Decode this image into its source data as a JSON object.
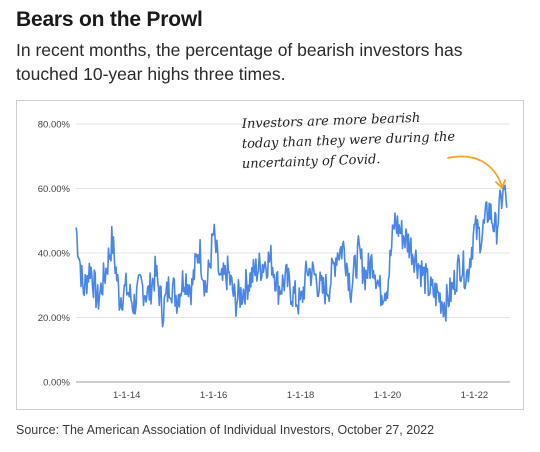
{
  "header": {
    "title": "Bears on the Prowl",
    "subtitle": "In recent months, the percentage of bearish investors has touched 10-year highs three times."
  },
  "source": "Source: The American Association of Individual Investors, October 27, 2022",
  "colors": {
    "line": "#4a86e8",
    "arrow": "#f4a62a",
    "grid": "#e3e3e3",
    "frame": "#cfcfcf"
  },
  "chart_data": {
    "type": "line",
    "title": "",
    "xlabel": "",
    "ylabel": "",
    "ylim": [
      0,
      80
    ],
    "yticks": [
      "0.00%",
      "20.00%",
      "40.00%",
      "60.00%",
      "80.00%"
    ],
    "xticks": [
      "1-1-14",
      "1-1-16",
      "1-1-18",
      "1-1-20",
      "1-1-22"
    ],
    "xlim": [
      "2012-11-01",
      "2022-10-27"
    ],
    "grid": true,
    "legend": "none",
    "annotation": "Investors are more bearish today than they were during the uncertainty of Covid.",
    "series": [
      {
        "points": [
          [
            "2012-11",
            48
          ],
          [
            "2013-01",
            28
          ],
          [
            "2013-03",
            36
          ],
          [
            "2013-05",
            25
          ],
          [
            "2013-07",
            33
          ],
          [
            "2013-09",
            44
          ],
          [
            "2013-11",
            26
          ],
          [
            "2014-01",
            29
          ],
          [
            "2014-03",
            24
          ],
          [
            "2014-05",
            30
          ],
          [
            "2014-07",
            27
          ],
          [
            "2014-09",
            34
          ],
          [
            "2014-11",
            22
          ],
          [
            "2015-01",
            31
          ],
          [
            "2015-03",
            26
          ],
          [
            "2015-05",
            33
          ],
          [
            "2015-07",
            29
          ],
          [
            "2015-09",
            42
          ],
          [
            "2015-11",
            28
          ],
          [
            "2016-01",
            46
          ],
          [
            "2016-03",
            30
          ],
          [
            "2016-05",
            34
          ],
          [
            "2016-07",
            25
          ],
          [
            "2016-09",
            28
          ],
          [
            "2016-11",
            32
          ],
          [
            "2017-01",
            35
          ],
          [
            "2017-03",
            37
          ],
          [
            "2017-05",
            38
          ],
          [
            "2017-07",
            29
          ],
          [
            "2017-09",
            32
          ],
          [
            "2017-11",
            27
          ],
          [
            "2018-01",
            24
          ],
          [
            "2018-03",
            35
          ],
          [
            "2018-05",
            33
          ],
          [
            "2018-07",
            28
          ],
          [
            "2018-09",
            30
          ],
          [
            "2018-11",
            40
          ],
          [
            "2019-01",
            42
          ],
          [
            "2019-03",
            29
          ],
          [
            "2019-05",
            40
          ],
          [
            "2019-07",
            33
          ],
          [
            "2019-09",
            38
          ],
          [
            "2019-11",
            28
          ],
          [
            "2020-01",
            30
          ],
          [
            "2020-03",
            50
          ],
          [
            "2020-05",
            46
          ],
          [
            "2020-07",
            43
          ],
          [
            "2020-09",
            38
          ],
          [
            "2020-11",
            33
          ],
          [
            "2021-01",
            28
          ],
          [
            "2021-03",
            27
          ],
          [
            "2021-05",
            24
          ],
          [
            "2021-07",
            29
          ],
          [
            "2021-09",
            37
          ],
          [
            "2021-11",
            33
          ],
          [
            "2022-01",
            47
          ],
          [
            "2022-03",
            45
          ],
          [
            "2022-05",
            54
          ],
          [
            "2022-07",
            47
          ],
          [
            "2022-09",
            60
          ],
          [
            "2022-10",
            56
          ]
        ]
      }
    ]
  }
}
